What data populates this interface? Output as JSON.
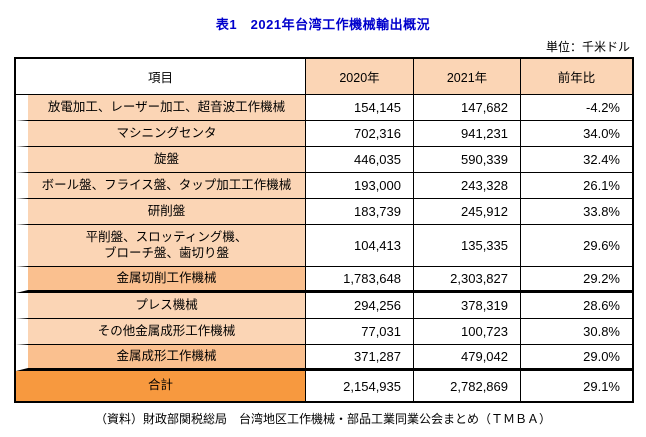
{
  "title": "表1　2021年台湾工作機械輸出概況",
  "unit": "単位：千米ドル",
  "caption": "（資料）財政部関税総局　台湾地区工作機械・部品工業同業公会まとめ（ＴＭＢＡ）",
  "colors": {
    "title_text": "#0000cc",
    "header_value_bg": "#fbd5b5",
    "item_row_bg": "#fbd5b5",
    "subtotal_row_bg": "#fac08f",
    "total_row_bg": "#f7993f",
    "border": "#000000"
  },
  "table": {
    "headers": [
      "項目",
      "2020年",
      "2021年",
      "前年比"
    ],
    "rows": [
      {
        "item": "放電加工、レーザー加工、超音波工作機械",
        "y2020": "154,145",
        "y2021": "147,682",
        "yoy": "-4.2%",
        "type": "normal"
      },
      {
        "item": "マシニングセンタ",
        "y2020": "702,316",
        "y2021": "941,231",
        "yoy": "34.0%",
        "type": "normal"
      },
      {
        "item": "旋盤",
        "y2020": "446,035",
        "y2021": "590,339",
        "yoy": "32.4%",
        "type": "normal"
      },
      {
        "item": "ボール盤、フライス盤、タップ加工工作機械",
        "y2020": "193,000",
        "y2021": "243,328",
        "yoy": "26.1%",
        "type": "normal"
      },
      {
        "item": "研削盤",
        "y2020": "183,739",
        "y2021": "245,912",
        "yoy": "33.8%",
        "type": "normal"
      },
      {
        "item": "平削盤、スロッティング機、\nブローチ盤、歯切り盤",
        "y2020": "104,413",
        "y2021": "135,335",
        "yoy": "29.6%",
        "type": "normal"
      },
      {
        "item": "金属切削工作機械",
        "y2020": "1,783,648",
        "y2021": "2,303,827",
        "yoy": "29.2%",
        "type": "subtotal"
      },
      {
        "item": "プレス機械",
        "y2020": "294,256",
        "y2021": "378,319",
        "yoy": "28.6%",
        "type": "normal"
      },
      {
        "item": "その他金属成形工作機械",
        "y2020": "77,031",
        "y2021": "100,723",
        "yoy": "30.8%",
        "type": "normal"
      },
      {
        "item": "金属成形工作機械",
        "y2020": "371,287",
        "y2021": "479,042",
        "yoy": "29.0%",
        "type": "subtotal"
      },
      {
        "item": "合計",
        "y2020": "2,154,935",
        "y2021": "2,782,869",
        "yoy": "29.1%",
        "type": "total"
      }
    ]
  }
}
